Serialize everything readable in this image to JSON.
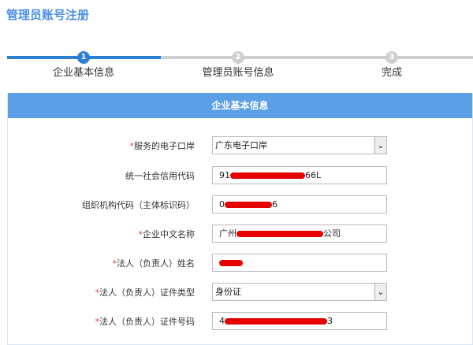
{
  "title": "管理员账号注册",
  "steps": [
    {
      "num": "1",
      "label": "企业基本信息",
      "active": true
    },
    {
      "num": "2",
      "label": "管理员账号信息",
      "active": false
    },
    {
      "num": "3",
      "label": "完成",
      "active": false
    }
  ],
  "colors": {
    "accent": "#2b7fd6",
    "header": "#5b9fe6",
    "inactive": "#cfcfcf",
    "required": "#e53935"
  },
  "section_title": "企业基本信息",
  "fields": [
    {
      "label": "服务的电子口岸",
      "required": true,
      "type": "select",
      "value": "广东电子口岸"
    },
    {
      "label": "统一社会信用代码",
      "required": false,
      "type": "text",
      "prefix": "91",
      "suffix": "66L",
      "redacted": true
    },
    {
      "label": "组织机构代码（主体标识码）",
      "required": false,
      "type": "text",
      "prefix": "0",
      "suffix": "6",
      "redacted": true
    },
    {
      "label": "企业中文名称",
      "required": true,
      "type": "text",
      "prefix": "广州",
      "suffix": "公司",
      "redacted": true
    },
    {
      "label": "法人（负责人）姓名",
      "required": true,
      "type": "text",
      "prefix": "",
      "suffix": "",
      "redacted": true
    },
    {
      "label": "法人（负责人）证件类型",
      "required": true,
      "type": "select",
      "value": "身份证"
    },
    {
      "label": "法人（负责人）证件号码",
      "required": true,
      "type": "text",
      "prefix": "4",
      "suffix": "3",
      "redacted": true
    }
  ]
}
